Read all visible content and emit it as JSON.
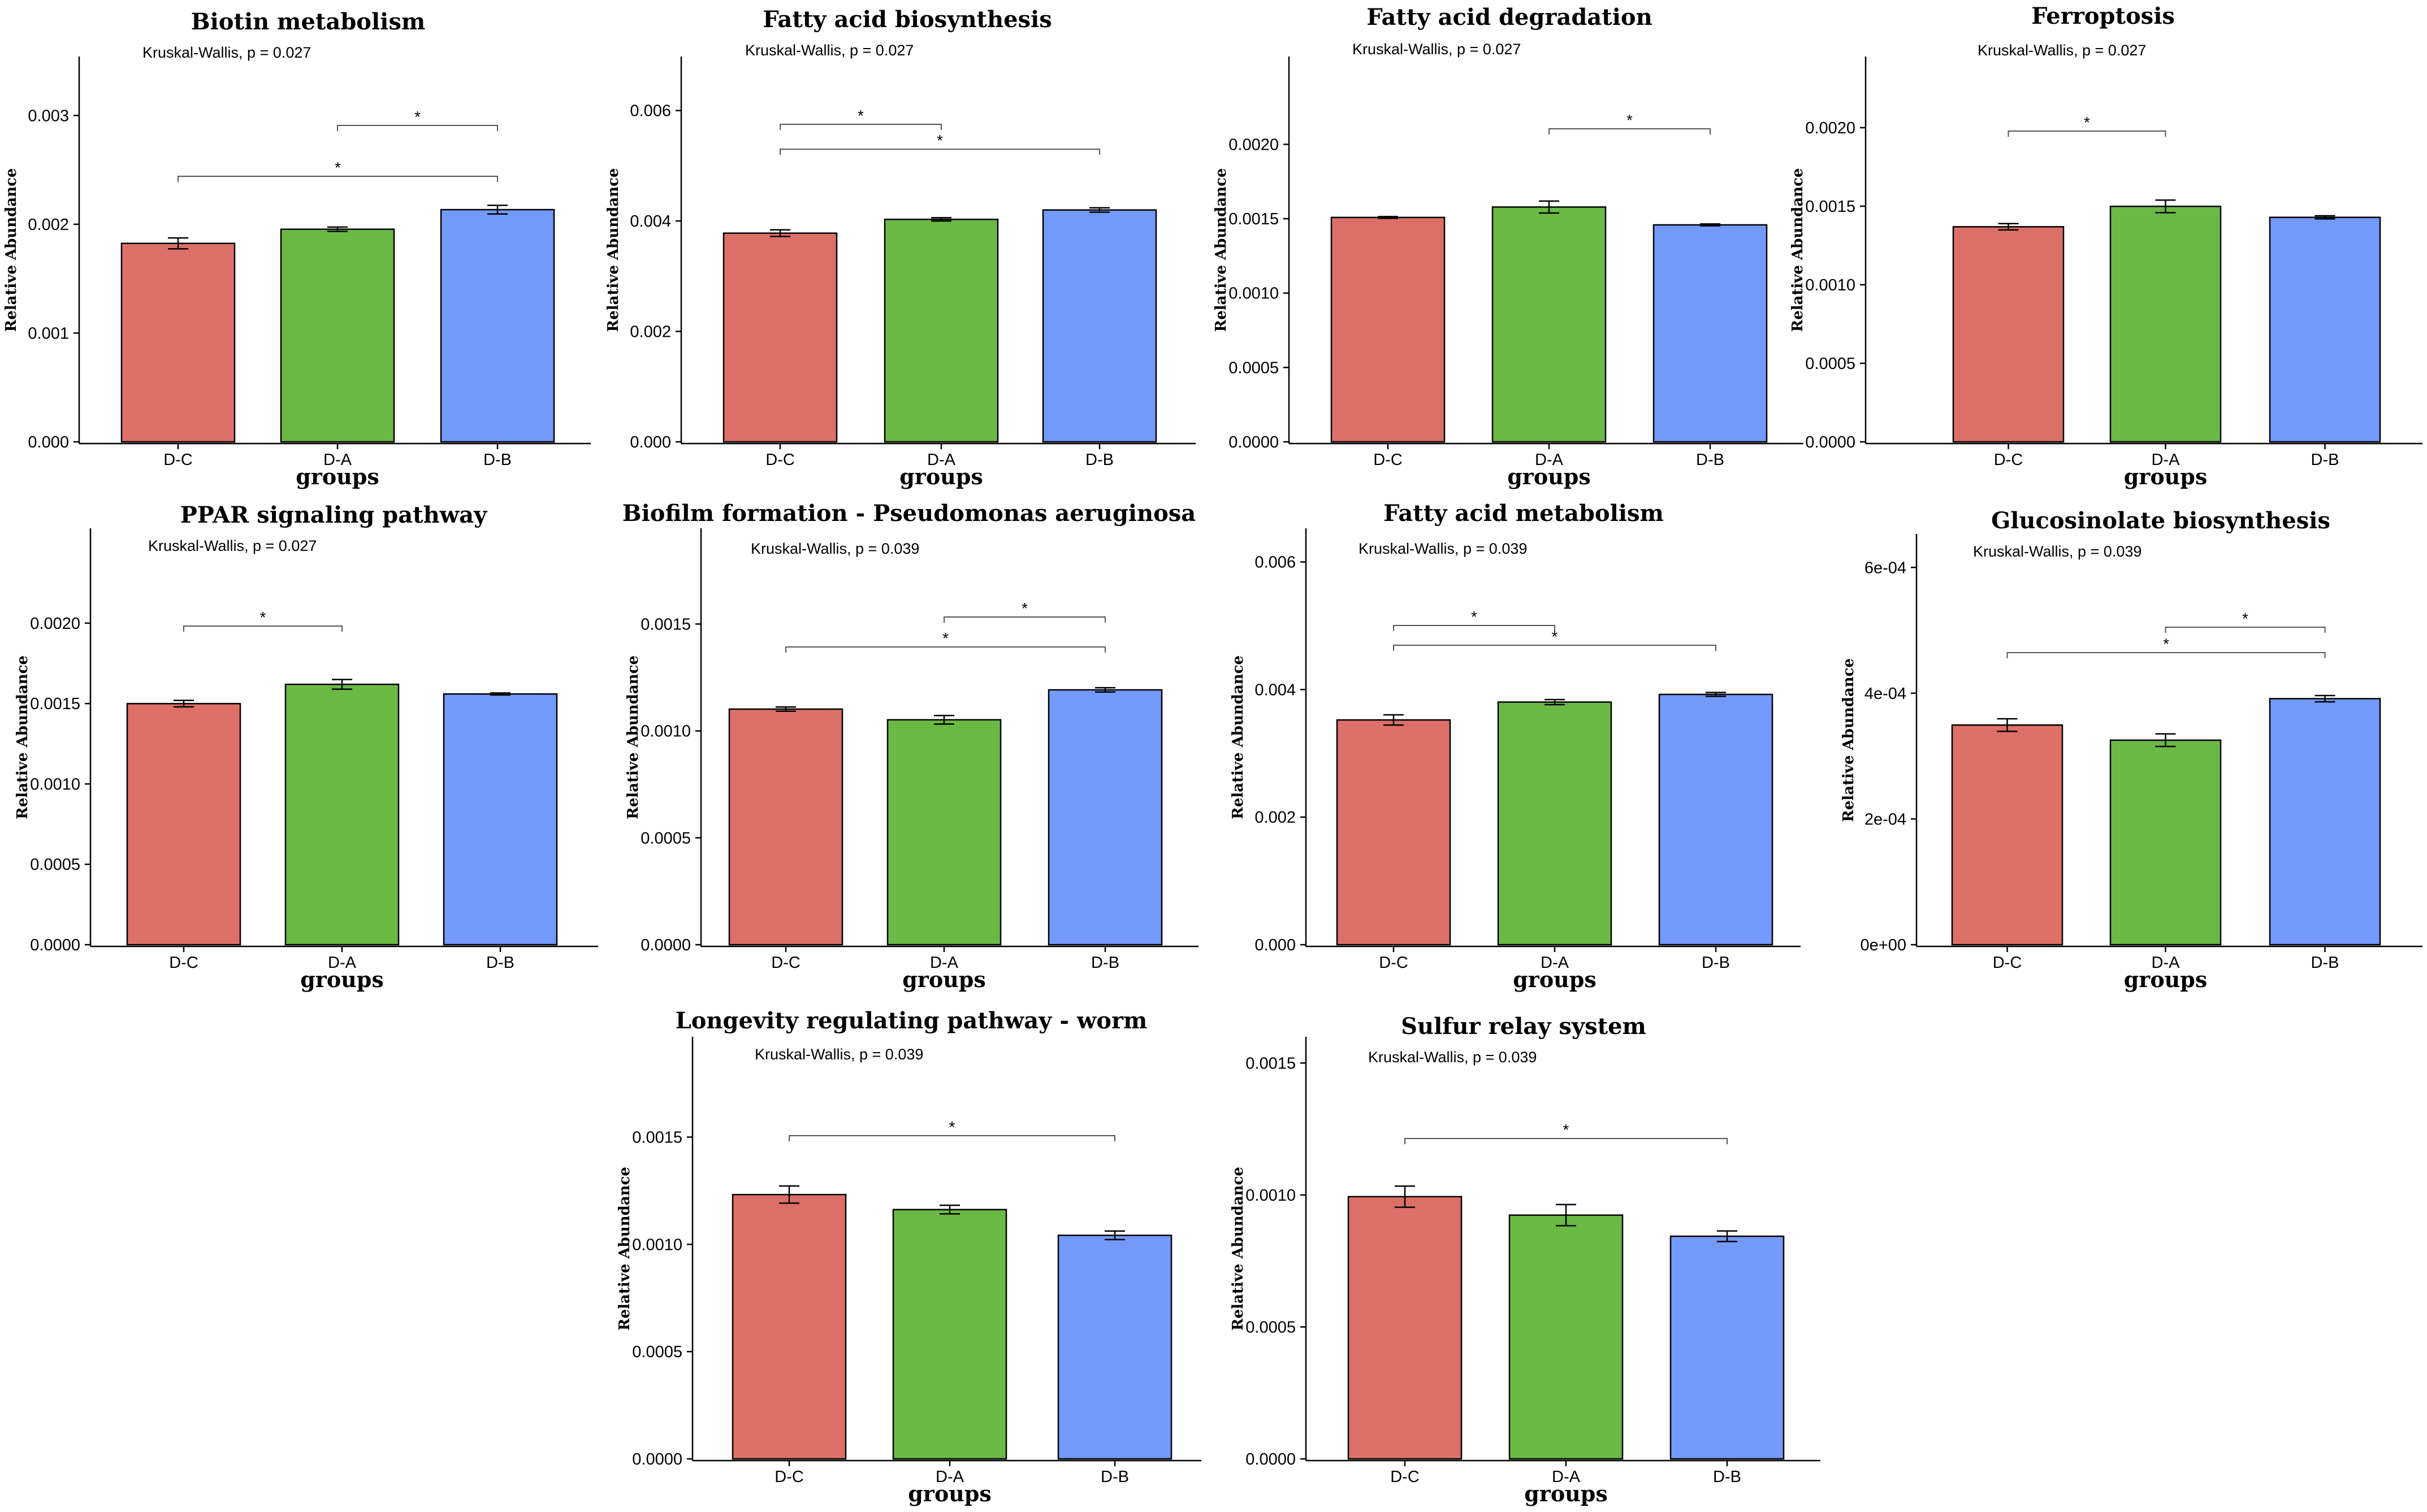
{
  "figure": {
    "group_colors": {
      "D-C": "#DC7068",
      "D-A": "#6AB944",
      "D-B": "#7399FA"
    },
    "charts_order": "row-major, 4 per row"
  },
  "chart_data": [
    {
      "type": "bar",
      "title": "Biotin metabolism",
      "subtitle": "Kruskal-Wallis, p = 0.027",
      "xlabel": "groups",
      "ylabel": "Relative Abundance",
      "categories": [
        "D-C",
        "D-A",
        "D-B"
      ],
      "values": [
        0.00184,
        0.00197,
        0.00215
      ],
      "errors": [
        5e-05,
        2e-05,
        4e-05
      ],
      "ylim": [
        0,
        0.00335
      ],
      "yticks": [
        0,
        0.001,
        0.002,
        0.003
      ],
      "ytick_labels": [
        "0.000",
        "0.001",
        "0.002",
        "0.003"
      ],
      "significance": [
        {
          "from": "D-A",
          "to": "D-B",
          "label": "*"
        },
        {
          "from": "D-C",
          "to": "D-B",
          "label": "*"
        }
      ]
    },
    {
      "type": "bar",
      "title": "Fatty acid biosynthesis",
      "subtitle": "Kruskal-Wallis, p = 0.027",
      "xlabel": "groups",
      "ylabel": "Relative Abundance",
      "categories": [
        "D-C",
        "D-A",
        "D-B"
      ],
      "values": [
        0.00381,
        0.00406,
        0.00423
      ],
      "errors": [
        6e-05,
        3e-05,
        4e-05
      ],
      "ylim": [
        0,
        0.0066
      ],
      "yticks": [
        0,
        0.002,
        0.004,
        0.006
      ],
      "ytick_labels": [
        "0.000",
        "0.002",
        "0.004",
        "0.006"
      ],
      "significance": [
        {
          "from": "D-C",
          "to": "D-A",
          "label": "*"
        },
        {
          "from": "D-C",
          "to": "D-B",
          "label": "*"
        }
      ]
    },
    {
      "type": "bar",
      "title": "Fatty acid degradation",
      "subtitle": "Kruskal-Wallis, p = 0.027",
      "xlabel": "groups",
      "ylabel": "Relative Abundance",
      "categories": [
        "D-C",
        "D-A",
        "D-B"
      ],
      "values": [
        0.00152,
        0.00159,
        0.00147
      ],
      "errors": [
        6e-06,
        4e-05,
        6e-06
      ],
      "ylim": [
        0,
        0.00245
      ],
      "yticks": [
        0,
        0.0005,
        0.001,
        0.0015,
        0.002
      ],
      "ytick_labels": [
        "0.0000",
        "0.0005",
        "0.0010",
        "0.0015",
        "0.0020"
      ],
      "significance": [
        {
          "from": "D-A",
          "to": "D-B",
          "label": "*"
        }
      ]
    },
    {
      "type": "bar",
      "title": "Ferroptosis",
      "subtitle": "Kruskal-Wallis, p = 0.027",
      "xlabel": "groups",
      "ylabel": "Relative Abundance",
      "categories": [
        "D-C",
        "D-A",
        "D-B"
      ],
      "values": [
        0.00138,
        0.00151,
        0.00144
      ],
      "errors": [
        2e-05,
        4e-05,
        1e-05
      ],
      "ylim": [
        0,
        0.00232
      ],
      "yticks": [
        0,
        0.0005,
        0.001,
        0.0015,
        0.002
      ],
      "ytick_labels": [
        "0.0000",
        "0.0005",
        "0.0010",
        "0.0015",
        "0.0020"
      ],
      "significance": [
        {
          "from": "D-C",
          "to": "D-A",
          "label": "*"
        }
      ]
    },
    {
      "type": "bar",
      "title": "PPAR signaling pathway",
      "subtitle": "Kruskal-Wallis, p = 0.027",
      "xlabel": "groups",
      "ylabel": "Relative Abundance",
      "categories": [
        "D-C",
        "D-A",
        "D-B"
      ],
      "values": [
        0.00151,
        0.00163,
        0.00157
      ],
      "errors": [
        2e-05,
        3e-05,
        6e-06
      ],
      "ylim": [
        0,
        0.00246
      ],
      "yticks": [
        0,
        0.0005,
        0.001,
        0.0015,
        0.002
      ],
      "ytick_labels": [
        "0.0000",
        "0.0005",
        "0.0010",
        "0.0015",
        "0.0020"
      ],
      "significance": [
        {
          "from": "D-C",
          "to": "D-A",
          "label": "*"
        }
      ]
    },
    {
      "type": "bar",
      "title": "Biofilm formation - Pseudomonas aeruginosa",
      "subtitle": "Kruskal-Wallis, p = 0.039",
      "xlabel": "groups",
      "ylabel": "Relative Abundance",
      "categories": [
        "D-C",
        "D-A",
        "D-B"
      ],
      "values": [
        0.00111,
        0.00106,
        0.0012
      ],
      "errors": [
        1e-05,
        2e-05,
        1e-05
      ],
      "ylim": [
        0,
        0.00185
      ],
      "yticks": [
        0,
        0.0005,
        0.001,
        0.0015
      ],
      "ytick_labels": [
        "0.0000",
        "0.0005",
        "0.0010",
        "0.0015"
      ],
      "significance": [
        {
          "from": "D-A",
          "to": "D-B",
          "label": "*"
        },
        {
          "from": "D-C",
          "to": "D-B",
          "label": "*"
        }
      ]
    },
    {
      "type": "bar",
      "title": "Fatty acid metabolism",
      "subtitle": "Kruskal-Wallis, p = 0.039",
      "xlabel": "groups",
      "ylabel": "Relative Abundance",
      "categories": [
        "D-C",
        "D-A",
        "D-B"
      ],
      "values": [
        0.00355,
        0.00383,
        0.00395
      ],
      "errors": [
        8e-05,
        4e-05,
        3e-05
      ],
      "ylim": [
        0,
        0.0062
      ],
      "yticks": [
        0,
        0.002,
        0.004,
        0.006
      ],
      "ytick_labels": [
        "0.000",
        "0.002",
        "0.004",
        "0.006"
      ],
      "significance": [
        {
          "from": "D-C",
          "to": "D-A",
          "label": "*"
        },
        {
          "from": "D-C",
          "to": "D-B",
          "label": "*"
        }
      ]
    },
    {
      "type": "bar",
      "title": "Glucosinolate biosynthesis",
      "subtitle": "Kruskal-Wallis, p = 0.039",
      "xlabel": "groups",
      "ylabel": "Relative Abundance",
      "categories": [
        "D-C",
        "D-A",
        "D-B"
      ],
      "values": [
        0.000352,
        0.000328,
        0.000394
      ],
      "errors": [
        1e-05,
        1e-05,
        5e-06
      ],
      "ylim": [
        0,
        0.00062
      ],
      "yticks": [
        0,
        0.0002,
        0.0004,
        0.0006
      ],
      "ytick_labels": [
        "0e+00",
        "2e-04",
        "4e-04",
        "6e-04"
      ],
      "significance": [
        {
          "from": "D-A",
          "to": "D-B",
          "label": "*"
        },
        {
          "from": "D-C",
          "to": "D-B",
          "label": "*"
        }
      ]
    },
    {
      "type": "bar",
      "title": "Longevity regulating pathway - worm",
      "subtitle": "Kruskal-Wallis, p = 0.039",
      "xlabel": "groups",
      "ylabel": "Relative Abundance",
      "categories": [
        "D-C",
        "D-A",
        "D-B"
      ],
      "values": [
        0.00124,
        0.00117,
        0.00105
      ],
      "errors": [
        4e-05,
        2e-05,
        2e-05
      ],
      "ylim": [
        0,
        0.00187
      ],
      "yticks": [
        0,
        0.0005,
        0.001,
        0.0015
      ],
      "ytick_labels": [
        "0.0000",
        "0.0005",
        "0.0010",
        "0.0015"
      ],
      "significance": [
        {
          "from": "D-C",
          "to": "D-B",
          "label": "*"
        }
      ]
    },
    {
      "type": "bar",
      "title": "Sulfur relay system",
      "subtitle": "Kruskal-Wallis, p = 0.039",
      "xlabel": "groups",
      "ylabel": "Relative Abundance",
      "categories": [
        "D-C",
        "D-A",
        "D-B"
      ],
      "values": [
        0.001,
        0.00093,
        0.00085
      ],
      "errors": [
        4e-05,
        4e-05,
        2e-05
      ],
      "ylim": [
        0,
        0.00152
      ],
      "yticks": [
        0,
        0.0005,
        0.001,
        0.0015
      ],
      "ytick_labels": [
        "0.0000",
        "0.0005",
        "0.0010",
        "0.0015"
      ],
      "significance": [
        {
          "from": "D-C",
          "to": "D-B",
          "label": "*"
        }
      ]
    }
  ]
}
